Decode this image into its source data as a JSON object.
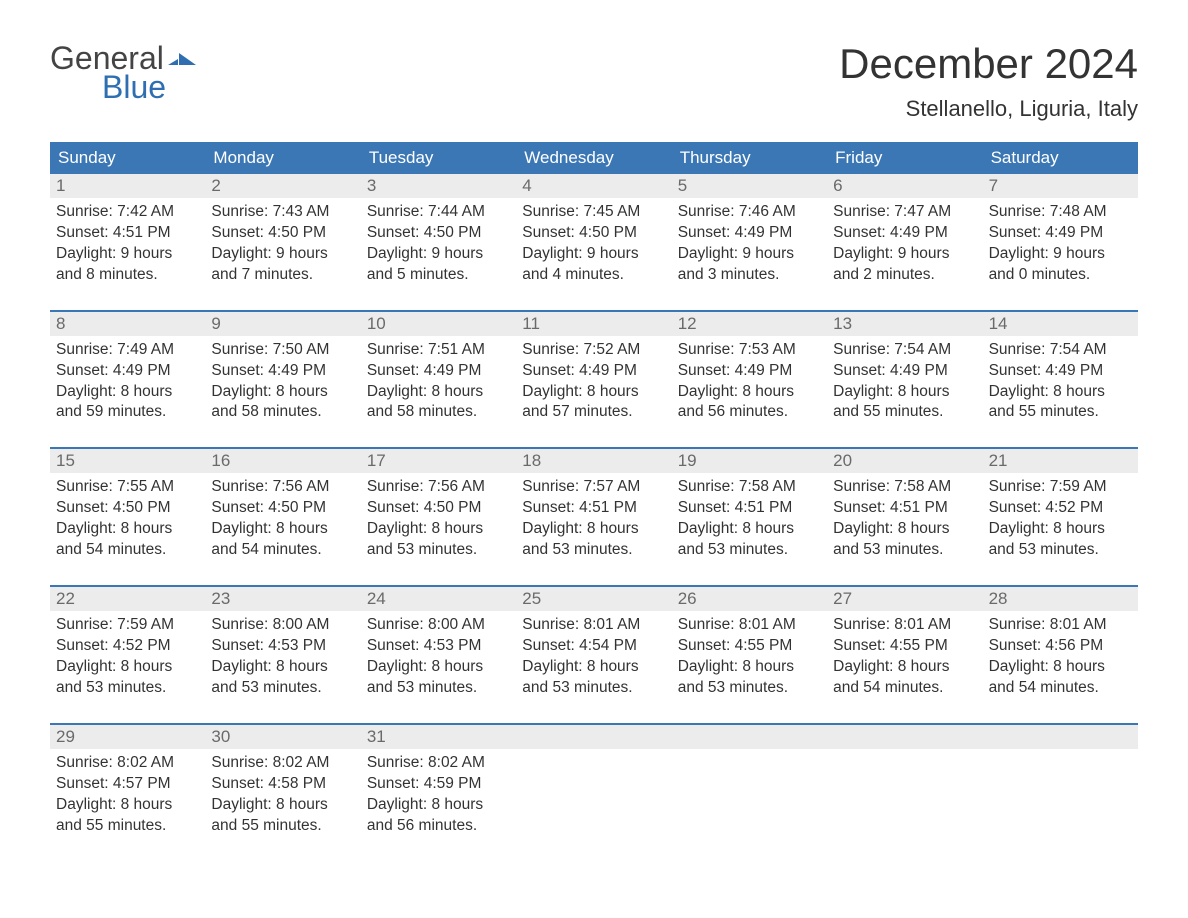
{
  "colors": {
    "header_bg": "#3b77b5",
    "header_text": "#ffffff",
    "daynum_bg": "#ececec",
    "daynum_text": "#6a6a6a",
    "body_text": "#333333",
    "logo_gray": "#444444",
    "logo_blue": "#2f6fb1",
    "week_border": "#3b77b5",
    "page_bg": "#ffffff"
  },
  "logo": {
    "text_general": "General",
    "text_blue": "Blue",
    "flag_color": "#2f6fb1"
  },
  "title": "December 2024",
  "location": "Stellanello, Liguria, Italy",
  "day_names": [
    "Sunday",
    "Monday",
    "Tuesday",
    "Wednesday",
    "Thursday",
    "Friday",
    "Saturday"
  ],
  "labels": {
    "sunrise": "Sunrise:",
    "sunset": "Sunset:",
    "daylight": "Daylight:"
  },
  "typography": {
    "title_fontsize": 42,
    "location_fontsize": 22,
    "dayheader_fontsize": 17,
    "daynum_fontsize": 17,
    "body_fontsize": 15.5
  },
  "layout": {
    "columns": 7,
    "rows": 5,
    "start_day_index": 0
  },
  "days": [
    {
      "n": 1,
      "sunrise": "7:42 AM",
      "sunset": "4:51 PM",
      "dl_h": 9,
      "dl_m": 8
    },
    {
      "n": 2,
      "sunrise": "7:43 AM",
      "sunset": "4:50 PM",
      "dl_h": 9,
      "dl_m": 7
    },
    {
      "n": 3,
      "sunrise": "7:44 AM",
      "sunset": "4:50 PM",
      "dl_h": 9,
      "dl_m": 5
    },
    {
      "n": 4,
      "sunrise": "7:45 AM",
      "sunset": "4:50 PM",
      "dl_h": 9,
      "dl_m": 4
    },
    {
      "n": 5,
      "sunrise": "7:46 AM",
      "sunset": "4:49 PM",
      "dl_h": 9,
      "dl_m": 3
    },
    {
      "n": 6,
      "sunrise": "7:47 AM",
      "sunset": "4:49 PM",
      "dl_h": 9,
      "dl_m": 2
    },
    {
      "n": 7,
      "sunrise": "7:48 AM",
      "sunset": "4:49 PM",
      "dl_h": 9,
      "dl_m": 0
    },
    {
      "n": 8,
      "sunrise": "7:49 AM",
      "sunset": "4:49 PM",
      "dl_h": 8,
      "dl_m": 59
    },
    {
      "n": 9,
      "sunrise": "7:50 AM",
      "sunset": "4:49 PM",
      "dl_h": 8,
      "dl_m": 58
    },
    {
      "n": 10,
      "sunrise": "7:51 AM",
      "sunset": "4:49 PM",
      "dl_h": 8,
      "dl_m": 58
    },
    {
      "n": 11,
      "sunrise": "7:52 AM",
      "sunset": "4:49 PM",
      "dl_h": 8,
      "dl_m": 57
    },
    {
      "n": 12,
      "sunrise": "7:53 AM",
      "sunset": "4:49 PM",
      "dl_h": 8,
      "dl_m": 56
    },
    {
      "n": 13,
      "sunrise": "7:54 AM",
      "sunset": "4:49 PM",
      "dl_h": 8,
      "dl_m": 55
    },
    {
      "n": 14,
      "sunrise": "7:54 AM",
      "sunset": "4:49 PM",
      "dl_h": 8,
      "dl_m": 55
    },
    {
      "n": 15,
      "sunrise": "7:55 AM",
      "sunset": "4:50 PM",
      "dl_h": 8,
      "dl_m": 54
    },
    {
      "n": 16,
      "sunrise": "7:56 AM",
      "sunset": "4:50 PM",
      "dl_h": 8,
      "dl_m": 54
    },
    {
      "n": 17,
      "sunrise": "7:56 AM",
      "sunset": "4:50 PM",
      "dl_h": 8,
      "dl_m": 53
    },
    {
      "n": 18,
      "sunrise": "7:57 AM",
      "sunset": "4:51 PM",
      "dl_h": 8,
      "dl_m": 53
    },
    {
      "n": 19,
      "sunrise": "7:58 AM",
      "sunset": "4:51 PM",
      "dl_h": 8,
      "dl_m": 53
    },
    {
      "n": 20,
      "sunrise": "7:58 AM",
      "sunset": "4:51 PM",
      "dl_h": 8,
      "dl_m": 53
    },
    {
      "n": 21,
      "sunrise": "7:59 AM",
      "sunset": "4:52 PM",
      "dl_h": 8,
      "dl_m": 53
    },
    {
      "n": 22,
      "sunrise": "7:59 AM",
      "sunset": "4:52 PM",
      "dl_h": 8,
      "dl_m": 53
    },
    {
      "n": 23,
      "sunrise": "8:00 AM",
      "sunset": "4:53 PM",
      "dl_h": 8,
      "dl_m": 53
    },
    {
      "n": 24,
      "sunrise": "8:00 AM",
      "sunset": "4:53 PM",
      "dl_h": 8,
      "dl_m": 53
    },
    {
      "n": 25,
      "sunrise": "8:01 AM",
      "sunset": "4:54 PM",
      "dl_h": 8,
      "dl_m": 53
    },
    {
      "n": 26,
      "sunrise": "8:01 AM",
      "sunset": "4:55 PM",
      "dl_h": 8,
      "dl_m": 53
    },
    {
      "n": 27,
      "sunrise": "8:01 AM",
      "sunset": "4:55 PM",
      "dl_h": 8,
      "dl_m": 54
    },
    {
      "n": 28,
      "sunrise": "8:01 AM",
      "sunset": "4:56 PM",
      "dl_h": 8,
      "dl_m": 54
    },
    {
      "n": 29,
      "sunrise": "8:02 AM",
      "sunset": "4:57 PM",
      "dl_h": 8,
      "dl_m": 55
    },
    {
      "n": 30,
      "sunrise": "8:02 AM",
      "sunset": "4:58 PM",
      "dl_h": 8,
      "dl_m": 55
    },
    {
      "n": 31,
      "sunrise": "8:02 AM",
      "sunset": "4:59 PM",
      "dl_h": 8,
      "dl_m": 56
    }
  ]
}
